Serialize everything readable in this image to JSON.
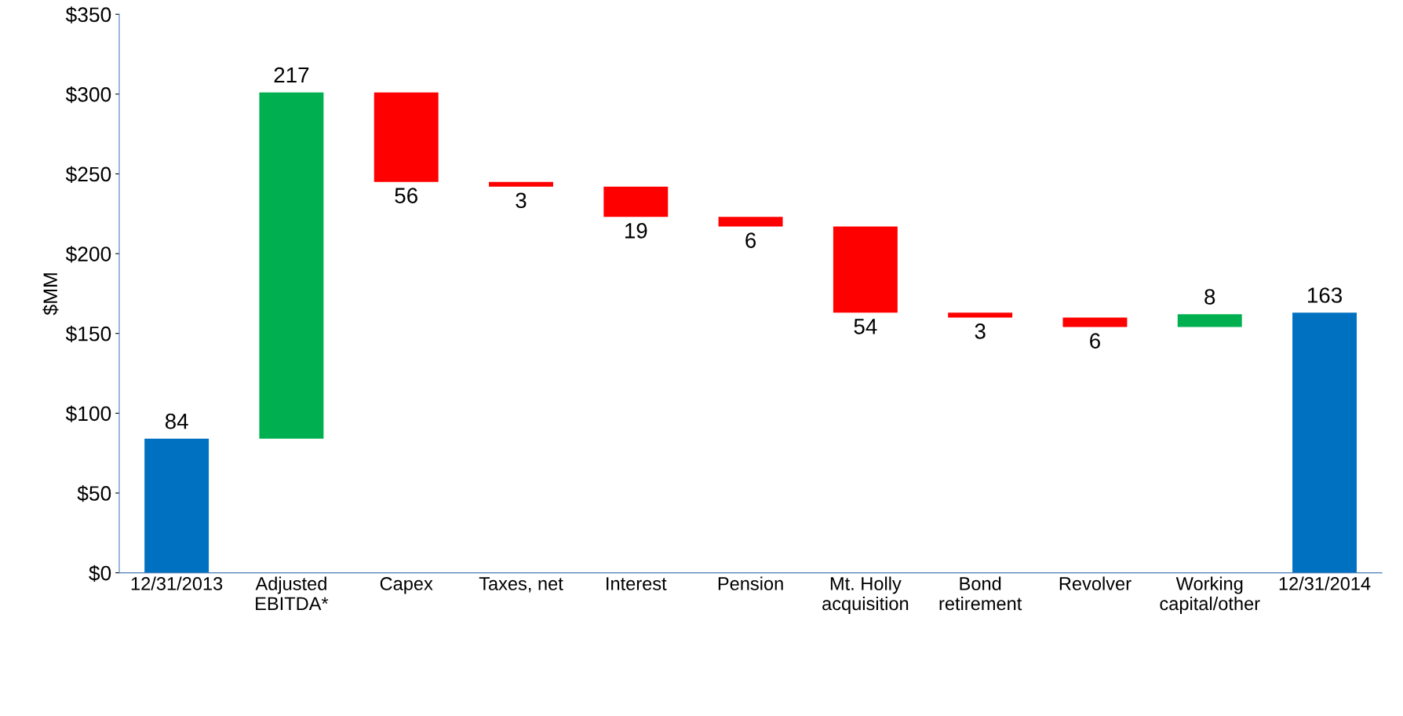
{
  "chart_data": {
    "type": "bar",
    "ylabel": "$MM",
    "categories": [
      "12/31/2013",
      "Adjusted\nEBITDA*",
      "Capex",
      "Taxes, net",
      "Interest",
      "Pension",
      "Mt. Holly\nacquisition",
      "Bond\nretirement",
      "Revolver",
      "Working\ncapital/other",
      "12/31/2014"
    ],
    "values": [
      84,
      217,
      -56,
      -3,
      -19,
      -6,
      -54,
      -3,
      -6,
      8,
      163
    ],
    "base": [
      0,
      84,
      301,
      245,
      242,
      223,
      217,
      163,
      160,
      154,
      0
    ],
    "colors": [
      "#0070c0",
      "#00b050",
      "#ff0000",
      "#ff0000",
      "#ff0000",
      "#ff0000",
      "#ff0000",
      "#ff0000",
      "#ff0000",
      "#00b050",
      "#0070c0"
    ],
    "value_labels": [
      "84",
      "217",
      "56",
      "3",
      "19",
      "6",
      "54",
      "3",
      "6",
      "8",
      "163"
    ],
    "ylim": [
      0,
      350
    ],
    "yticks": [
      {
        "value": 0,
        "label": "$0"
      },
      {
        "value": 50,
        "label": "$50"
      },
      {
        "value": 100,
        "label": "$100"
      },
      {
        "value": 150,
        "label": "$150"
      },
      {
        "value": 200,
        "label": "$200"
      },
      {
        "value": 250,
        "label": "$250"
      },
      {
        "value": 300,
        "label": "$300"
      },
      {
        "value": 350,
        "label": "$350"
      }
    ],
    "grid": false
  }
}
